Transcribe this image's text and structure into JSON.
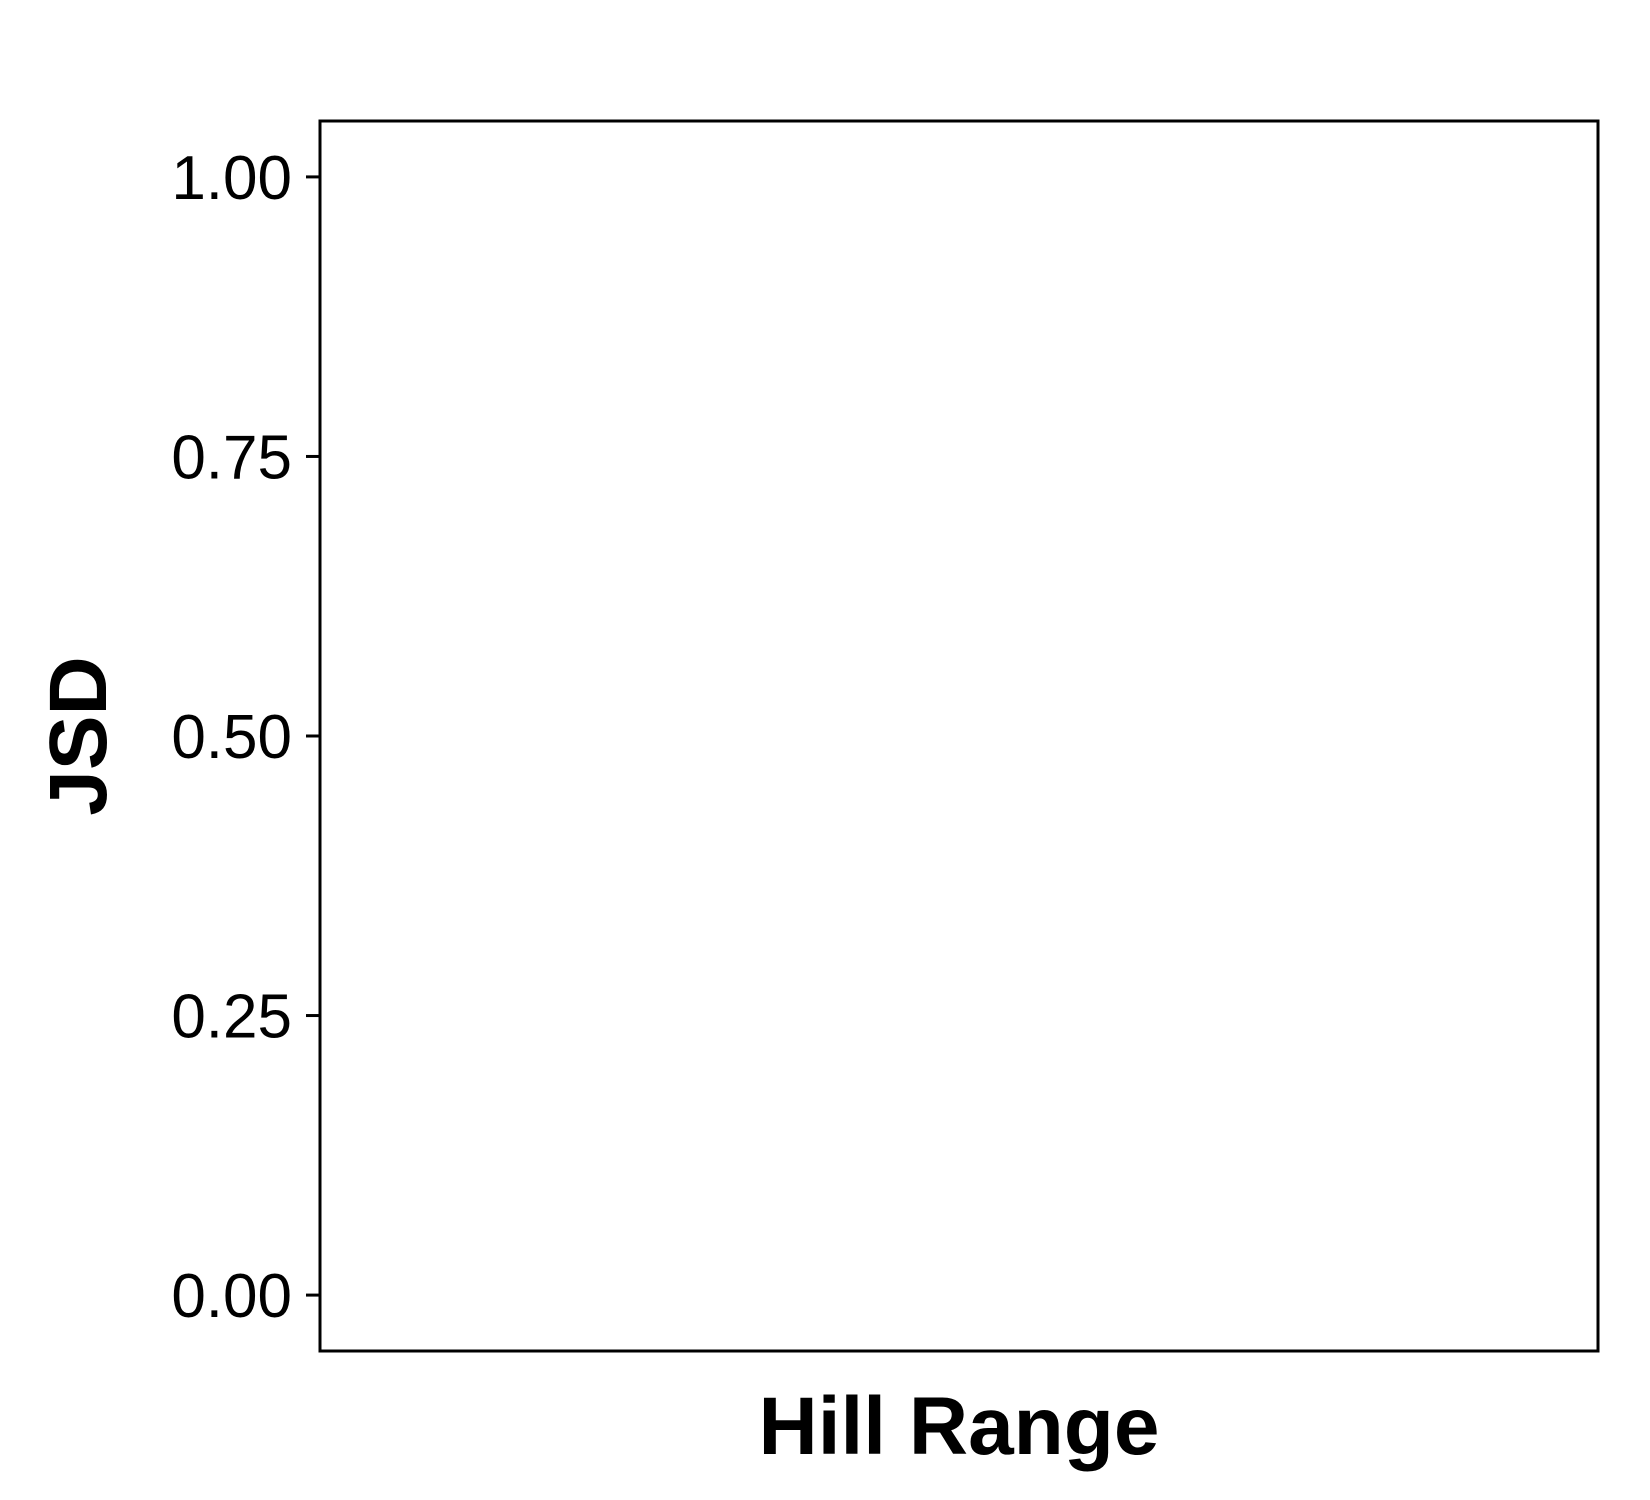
{
  "chart_data": {
    "type": "scatter",
    "title": "",
    "xlabel": "Hill Range",
    "ylabel": "JSD",
    "ylim": [
      -0.05,
      1.05
    ],
    "yticks": [
      {
        "value": 0.0,
        "label": "0.00"
      },
      {
        "value": 0.25,
        "label": "0.25"
      },
      {
        "value": 0.5,
        "label": "0.50"
      },
      {
        "value": 0.75,
        "label": "0.75"
      },
      {
        "value": 1.0,
        "label": "1.00"
      }
    ],
    "xticks": [],
    "series": [],
    "grid": false,
    "legend": "none",
    "colors": {
      "axis": "#000000",
      "background": "#ffffff"
    }
  }
}
